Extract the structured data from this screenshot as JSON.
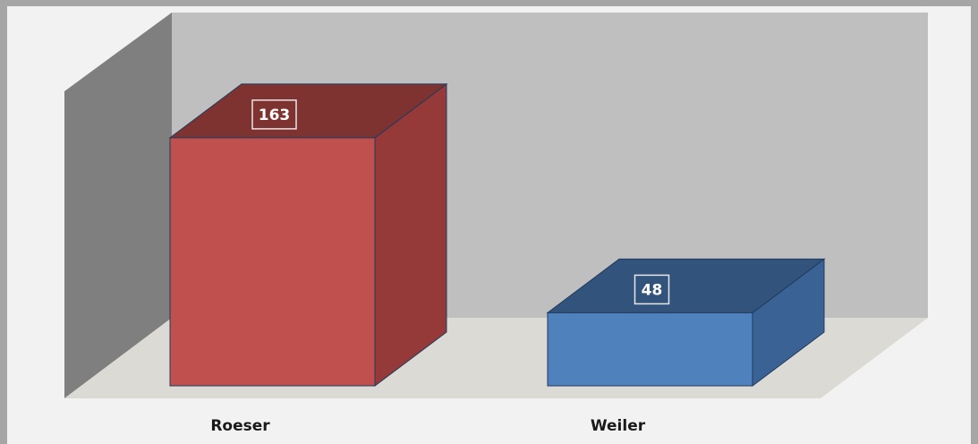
{
  "chart_data": {
    "type": "bar",
    "categories": [
      "Roeser",
      "Weiler"
    ],
    "values": [
      163,
      48
    ],
    "title": "",
    "xlabel": "",
    "ylabel": "",
    "ylim": [
      0,
      200
    ],
    "grid": false,
    "legend": "none",
    "colors": {
      "Roeser": {
        "front": "#c0504d",
        "top": "#7f3331",
        "side": "#953a38"
      },
      "Weiler": {
        "front": "#4f81bd",
        "top": "#32547c",
        "side": "#3b6294"
      }
    },
    "background": {
      "page": "#f2f2f2",
      "frame": "#a6a6a6",
      "back_wall": "#bfbfbf",
      "side_wall": "#7f7f7f",
      "floor": "#dcdad4"
    }
  }
}
